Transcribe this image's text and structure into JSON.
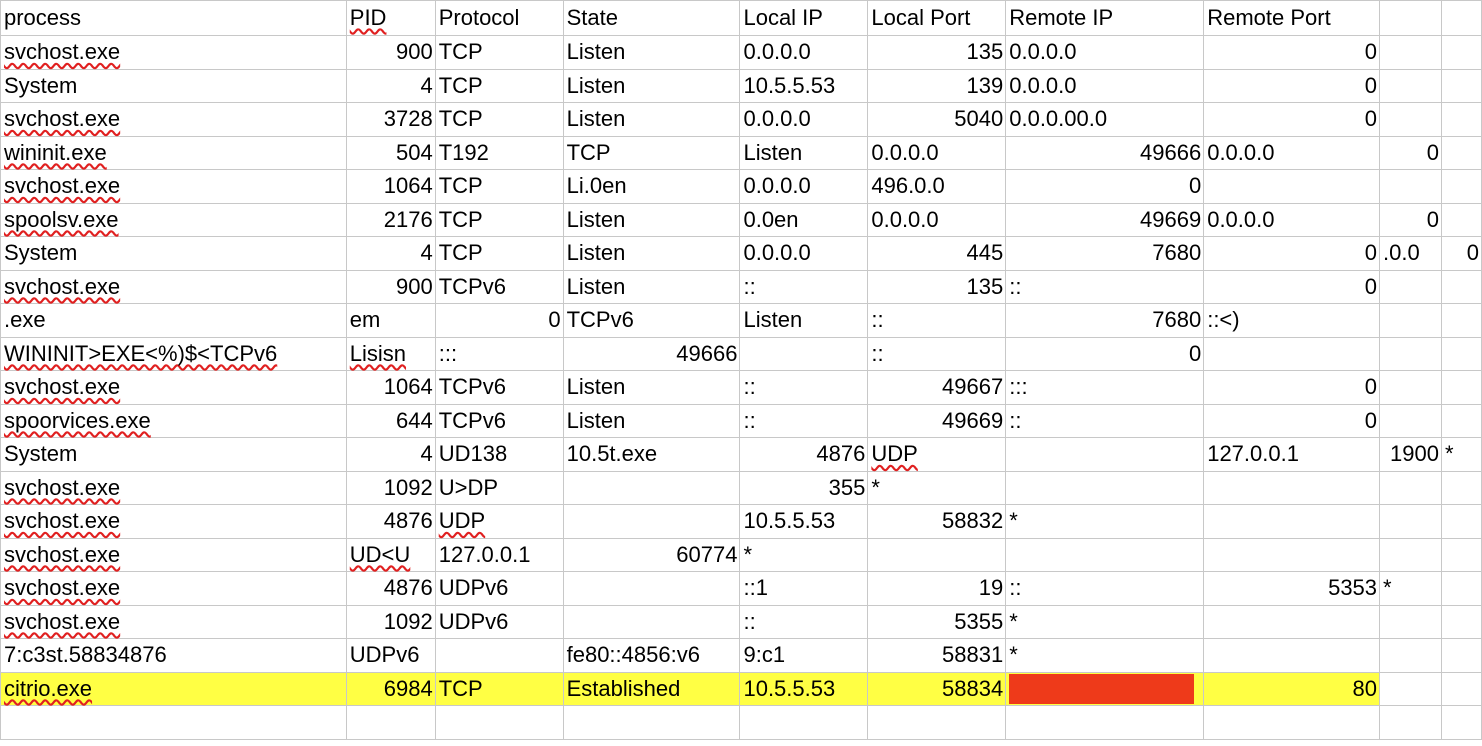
{
  "colors": {
    "highlight": "#ffff44",
    "redaction": "#ee3a1a",
    "gridline": "#c8c8c8",
    "spellcheck": "#e02020"
  },
  "headers": [
    "process",
    "PID",
    "Protocol",
    "State",
    "Local IP",
    "Local Port",
    "Remote IP",
    "Remote Port",
    "",
    ""
  ],
  "rows": [
    [
      "svchost.exe",
      "900",
      "TCP",
      "Listen",
      "0.0.0.0",
      "135",
      "0.0.0.0",
      "0",
      "",
      ""
    ],
    [
      "System",
      "4",
      "TCP",
      "Listen",
      "10.5.5.53",
      "139",
      "0.0.0.0",
      "0",
      "",
      ""
    ],
    [
      "svchost.exe",
      "3728",
      "TCP",
      "Listen",
      "0.0.0.0",
      "5040",
      "0.0.0.00.0",
      "0",
      "",
      ""
    ],
    [
      "wininit.exe",
      "504",
      "T192",
      "TCP",
      "Listen",
      "0.0.0.0",
      "49666",
      "0.0.0.0",
      "0",
      ""
    ],
    [
      "svchost.exe",
      "1064",
      "TCP",
      "Li.0en",
      "0.0.0.0",
      "496.0.0",
      "0",
      "",
      "",
      ""
    ],
    [
      "spoolsv.exe",
      "2176",
      "TCP",
      "Listen",
      "0.0en",
      "0.0.0.0",
      "49669",
      "0.0.0.0",
      "0",
      ""
    ],
    [
      "System",
      "4",
      "TCP",
      "Listen",
      "0.0.0.0",
      "445",
      "7680",
      "0",
      ".0.0",
      "0"
    ],
    [
      "svchost.exe",
      "900",
      "TCPv6",
      "Listen",
      "::",
      "135",
      "::",
      "0",
      "",
      ""
    ],
    [
      ".exe",
      "em",
      "0",
      "TCPv6",
      "Listen",
      "::",
      "7680",
      "::<)",
      "",
      ""
    ],
    [
      "WININIT>EXE<%)$<TCPv6",
      "Lisisn",
      ":::",
      "49666",
      "",
      "::",
      "0",
      "",
      "",
      ""
    ],
    [
      "svchost.exe",
      "1064",
      "TCPv6",
      "Listen",
      "::",
      "49667",
      ":::",
      "0",
      "",
      ""
    ],
    [
      "spoorvices.exe",
      "644",
      "TCPv6",
      "Listen",
      "::",
      "49669",
      "::",
      "0",
      "",
      ""
    ],
    [
      "System",
      "4",
      "UD138",
      "10.5t.exe",
      "4876",
      "UDP",
      "",
      "127.0.0.1",
      "1900",
      "*"
    ],
    [
      "svchost.exe",
      "1092",
      "U>DP",
      "",
      "355",
      "*",
      "",
      "",
      "",
      ""
    ],
    [
      "svchost.exe",
      "4876",
      "UDP",
      "",
      "10.5.5.53",
      "58832",
      "*",
      "",
      "",
      ""
    ],
    [
      "svchost.exe",
      "UD<U",
      "127.0.0.1",
      "60774",
      "*",
      "",
      "",
      "",
      "",
      ""
    ],
    [
      "svchost.exe",
      "4876",
      "UDPv6",
      "",
      "::1",
      "19",
      "::",
      "5353",
      "*",
      ""
    ],
    [
      "svchost.exe",
      "1092",
      "UDPv6",
      "",
      "::",
      "5355",
      "*",
      "",
      "",
      ""
    ],
    [
      "7:c3st.58834876",
      "UDPv6",
      "",
      "fe80::4856:v6",
      "9:c1",
      "58831",
      "*",
      "",
      "",
      ""
    ],
    [
      "citrio.exe",
      "6984",
      "TCP",
      "Established",
      "10.5.5.53",
      "58834",
      "",
      "80",
      "",
      ""
    ],
    [
      "",
      "",
      "",
      "",
      "",
      "",
      "",
      "",
      "",
      ""
    ]
  ]
}
